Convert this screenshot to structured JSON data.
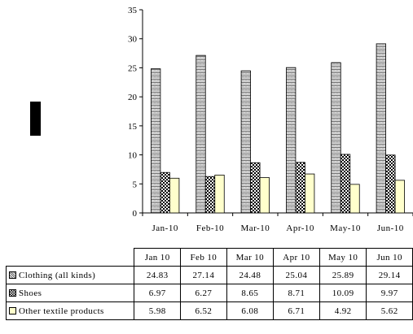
{
  "chart_data": {
    "type": "bar",
    "categories": [
      "Jan-10",
      "Feb-10",
      "Mar-10",
      "Apr-10",
      "May-10",
      "Jun-10"
    ],
    "table_headers": [
      "Jan 10",
      "Feb 10",
      "Mar 10",
      "Apr 10",
      "May 10",
      "Jun 10"
    ],
    "ylim": [
      0,
      35
    ],
    "yticks": [
      0,
      5,
      10,
      15,
      20,
      25,
      30,
      35
    ],
    "grid": false,
    "legend": "data-table",
    "series": [
      {
        "name": "Clothing (all kinds)",
        "pattern": "zigzag",
        "color": "#ffffff",
        "values": [
          24.83,
          27.14,
          24.48,
          25.04,
          25.89,
          29.14
        ],
        "labels": [
          "24.83",
          "27.14",
          "24.48",
          "25.04",
          "25.89",
          "29.14"
        ]
      },
      {
        "name": "Shoes",
        "pattern": "checker",
        "color": "#000000",
        "values": [
          6.97,
          6.27,
          8.65,
          8.71,
          10.09,
          9.97
        ],
        "labels": [
          "6.97",
          "6.27",
          "8.65",
          "8.71",
          "10.09",
          "9.97"
        ]
      },
      {
        "name": "Other textile products",
        "pattern": "solid",
        "color": "#ffffcc",
        "values": [
          5.98,
          6.52,
          6.08,
          6.71,
          4.92,
          5.62
        ],
        "labels": [
          "5.98",
          "6.52",
          "6.08",
          "6.71",
          "4.92",
          "5.62"
        ]
      }
    ]
  }
}
